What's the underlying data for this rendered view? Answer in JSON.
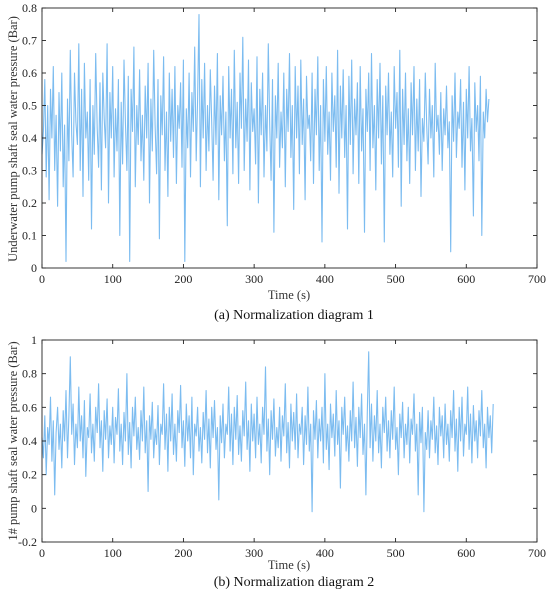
{
  "chart_data": [
    {
      "type": "line",
      "caption": "(a) Normalization diagram 1",
      "xlabel": "Time (s)",
      "ylabel": "Underwater pump shaft seal water pressure (Bar)",
      "xlim": [
        0,
        700
      ],
      "ylim": [
        0,
        0.8
      ],
      "xticks": [
        0,
        100,
        200,
        300,
        400,
        500,
        600,
        700
      ],
      "yticks": [
        0,
        0.1,
        0.2,
        0.3,
        0.4,
        0.5,
        0.6,
        0.7,
        0.8
      ],
      "xtick_labels": [
        "0",
        "100",
        "200",
        "300",
        "400",
        "500",
        "600",
        "700"
      ],
      "ytick_labels": [
        "0",
        "0.1",
        "0.2",
        "0.3",
        "0.4",
        "0.5",
        "0.6",
        "0.7",
        "0.8"
      ],
      "grid": false,
      "line_color": "#7cbcf0",
      "series": [
        {
          "x_start": 0,
          "x_step": 2,
          "values": [
            0.35,
            0.42,
            0.58,
            0.28,
            0.5,
            0.21,
            0.55,
            0.4,
            0.62,
            0.3,
            0.47,
            0.19,
            0.54,
            0.36,
            0.6,
            0.25,
            0.44,
            0.02,
            0.52,
            0.33,
            0.67,
            0.41,
            0.28,
            0.6,
            0.45,
            0.38,
            0.69,
            0.3,
            0.55,
            0.22,
            0.63,
            0.4,
            0.48,
            0.27,
            0.58,
            0.12,
            0.5,
            0.35,
            0.66,
            0.43,
            0.31,
            0.57,
            0.24,
            0.6,
            0.46,
            0.37,
            0.69,
            0.2,
            0.54,
            0.4,
            0.62,
            0.28,
            0.49,
            0.36,
            0.58,
            0.1,
            0.51,
            0.32,
            0.64,
            0.45,
            0.3,
            0.59,
            0.02,
            0.55,
            0.42,
            0.68,
            0.25,
            0.5,
            0.38,
            0.61,
            0.33,
            0.47,
            0.27,
            0.56,
            0.4,
            0.63,
            0.2,
            0.52,
            0.36,
            0.67,
            0.44,
            0.29,
            0.58,
            0.09,
            0.53,
            0.41,
            0.65,
            0.3,
            0.48,
            0.22,
            0.6,
            0.39,
            0.55,
            0.34,
            0.62,
            0.26,
            0.5,
            0.43,
            0.57,
            0.31,
            0.64,
            0.02,
            0.49,
            0.37,
            0.6,
            0.28,
            0.54,
            0.42,
            0.68,
            0.33,
            0.52,
            0.78,
            0.25,
            0.58,
            0.4,
            0.63,
            0.3,
            0.5,
            0.36,
            0.61,
            0.45,
            0.27,
            0.56,
            0.38,
            0.66,
            0.21,
            0.53,
            0.41,
            0.59,
            0.33,
            0.48,
            0.13,
            0.62,
            0.4,
            0.55,
            0.29,
            0.67,
            0.37,
            0.51,
            0.26,
            0.6,
            0.43,
            0.71,
            0.3,
            0.52,
            0.39,
            0.64,
            0.24,
            0.57,
            0.42,
            0.49,
            0.32,
            0.65,
            0.2,
            0.55,
            0.41,
            0.6,
            0.28,
            0.5,
            0.36,
            0.69,
            0.44,
            0.27,
            0.58,
            0.11,
            0.53,
            0.4,
            0.63,
            0.31,
            0.48,
            0.37,
            0.6,
            0.25,
            0.55,
            0.42,
            0.66,
            0.34,
            0.5,
            0.18,
            0.62,
            0.4,
            0.56,
            0.29,
            0.64,
            0.38,
            0.52,
            0.21,
            0.59,
            0.43,
            0.47,
            0.33,
            0.6,
            0.26,
            0.55,
            0.41,
            0.65,
            0.3,
            0.5,
            0.08,
            0.58,
            0.39,
            0.62,
            0.35,
            0.48,
            0.27,
            0.6,
            0.42,
            0.53,
            0.31,
            0.67,
            0.23,
            0.56,
            0.4,
            0.61,
            0.34,
            0.5,
            0.12,
            0.59,
            0.38,
            0.64,
            0.29,
            0.52,
            0.41,
            0.57,
            0.26,
            0.62,
            0.36,
            0.49,
            0.11,
            0.55,
            0.42,
            0.6,
            0.3,
            0.66,
            0.37,
            0.5,
            0.24,
            0.58,
            0.4,
            0.63,
            0.32,
            0.53,
            0.08,
            0.56,
            0.41,
            0.6,
            0.35,
            0.48,
            0.28,
            0.62,
            0.43,
            0.54,
            0.31,
            0.67,
            0.19,
            0.55,
            0.38,
            0.6,
            0.33,
            0.49,
            0.26,
            0.57,
            0.41,
            0.62,
            0.3,
            0.52,
            0.36,
            0.58,
            0.22,
            0.46,
            0.39,
            0.6,
            0.44,
            0.32,
            0.55,
            0.4,
            0.5,
            0.28,
            0.63,
            0.42,
            0.47,
            0.35,
            0.54,
            0.3,
            0.49,
            0.41,
            0.56,
            0.37,
            0.45,
            0.05,
            0.53,
            0.39,
            0.6,
            0.34,
            0.48,
            0.43,
            0.58,
            0.31,
            0.51,
            0.24,
            0.55,
            0.4,
            0.62,
            0.36,
            0.46,
            0.16,
            0.57,
            0.42,
            0.5,
            0.33,
            0.59,
            0.1,
            0.48,
            0.4,
            0.55,
            0.45,
            0.52
          ]
        }
      ]
    },
    {
      "type": "line",
      "caption": "(b) Normalization diagram 2",
      "xlabel": "Time (s)",
      "ylabel": "1# pump shaft seal water pressure (Bar)",
      "xlim": [
        0,
        700
      ],
      "ylim": [
        -0.2,
        1
      ],
      "xticks": [
        0,
        100,
        200,
        300,
        400,
        500,
        600,
        700
      ],
      "yticks": [
        -0.2,
        0,
        0.2,
        0.4,
        0.6,
        0.8,
        1
      ],
      "xtick_labels": [
        "0",
        "100",
        "200",
        "300",
        "400",
        "500",
        "600",
        "700"
      ],
      "ytick_labels": [
        "-0.2",
        "0",
        "0.2",
        "0.4",
        "0.6",
        "0.8",
        "1"
      ],
      "grid": false,
      "line_color": "#7cbcf0",
      "series": [
        {
          "x_start": 0,
          "x_step": 2,
          "values": [
            0.42,
            0.3,
            0.55,
            0.2,
            0.48,
            0.38,
            0.66,
            0.28,
            0.52,
            0.08,
            0.45,
            0.6,
            0.35,
            0.5,
            0.24,
            0.58,
            0.4,
            0.7,
            0.3,
            0.55,
            0.9,
            0.44,
            0.62,
            0.26,
            0.5,
            0.36,
            0.72,
            0.4,
            0.55,
            0.3,
            0.64,
            0.19,
            0.48,
            0.42,
            0.68,
            0.33,
            0.5,
            0.28,
            0.6,
            0.45,
            0.74,
            0.36,
            0.52,
            0.22,
            0.58,
            0.41,
            0.65,
            0.3,
            0.49,
            0.38,
            0.6,
            0.27,
            0.54,
            0.44,
            0.71,
            0.34,
            0.5,
            0.26,
            0.57,
            0.4,
            0.8,
            0.32,
            0.51,
            0.24,
            0.6,
            0.43,
            0.66,
            0.35,
            0.48,
            0.29,
            0.58,
            0.4,
            0.72,
            0.33,
            0.52,
            0.1,
            0.55,
            0.41,
            0.63,
            0.3,
            0.47,
            0.38,
            0.61,
            0.26,
            0.5,
            0.44,
            0.74,
            0.35,
            0.56,
            0.22,
            0.6,
            0.4,
            0.68,
            0.32,
            0.5,
            0.28,
            0.58,
            0.45,
            0.73,
            0.36,
            0.52,
            0.25,
            0.62,
            0.4,
            0.55,
            0.3,
            0.66,
            0.2,
            0.5,
            0.43,
            0.6,
            0.34,
            0.48,
            0.27,
            0.57,
            0.41,
            0.7,
            0.33,
            0.53,
            0.24,
            0.6,
            0.42,
            0.64,
            0.35,
            0.48,
            0.05,
            0.55,
            0.39,
            0.62,
            0.3,
            0.5,
            0.44,
            0.72,
            0.34,
            0.56,
            0.26,
            0.6,
            0.41,
            0.67,
            0.32,
            0.49,
            0.28,
            0.58,
            0.43,
            0.75,
            0.35,
            0.52,
            0.22,
            0.62,
            0.4,
            0.56,
            0.3,
            0.66,
            0.38,
            0.5,
            0.27,
            0.6,
            0.44,
            0.84,
            0.34,
            0.53,
            0.2,
            0.58,
            0.41,
            0.65,
            0.31,
            0.48,
            0.36,
            0.6,
            0.28,
            0.55,
            0.43,
            0.74,
            0.33,
            0.51,
            0.24,
            0.62,
            0.4,
            0.57,
            0.35,
            0.68,
            0.3,
            0.5,
            0.44,
            0.6,
            0.26,
            0.55,
            0.38,
            0.72,
            0.34,
            0.5,
            -0.02,
            0.58,
            0.41,
            0.64,
            0.3,
            0.53,
            0.4,
            0.6,
            0.27,
            0.8,
            0.35,
            0.5,
            0.23,
            0.62,
            0.42,
            0.56,
            0.31,
            0.7,
            0.38,
            0.52,
            0.12,
            0.6,
            0.44,
            0.66,
            0.34,
            0.49,
            0.28,
            0.58,
            0.4,
            0.75,
            0.36,
            0.54,
            0.25,
            0.6,
            0.42,
            0.68,
            0.32,
            0.5,
            0.08,
            0.57,
            0.93,
            0.36,
            0.62,
            0.28,
            0.55,
            0.4,
            0.7,
            0.33,
            0.5,
            0.24,
            0.6,
            0.45,
            0.66,
            0.34,
            0.52,
            0.3,
            0.58,
            0.41,
            0.72,
            0.35,
            0.48,
            0.2,
            0.56,
            0.42,
            0.63,
            0.3,
            0.5,
            0.38,
            0.6,
            0.27,
            0.53,
            0.44,
            0.68,
            0.34,
            0.5,
            0.08,
            0.57,
            0.39,
            0.6,
            -0.02,
            0.45,
            0.35,
            0.58,
            0.3,
            0.52,
            0.41,
            0.66,
            0.33,
            0.49,
            0.26,
            0.6,
            0.43,
            0.55,
            0.3,
            0.62,
            0.38,
            0.5,
            0.28,
            0.58,
            0.42,
            0.7,
            0.34,
            0.53,
            0.22,
            0.6,
            0.4,
            0.66,
            0.31,
            0.5,
            0.44,
            0.72,
            0.35,
            0.56,
            0.27,
            0.61,
            0.4,
            0.52,
            0.3,
            0.58,
            0.43,
            0.7,
            0.36,
            0.5,
            0.24,
            0.6,
            0.42,
            0.55,
            0.33,
            0.62
          ]
        }
      ]
    }
  ]
}
